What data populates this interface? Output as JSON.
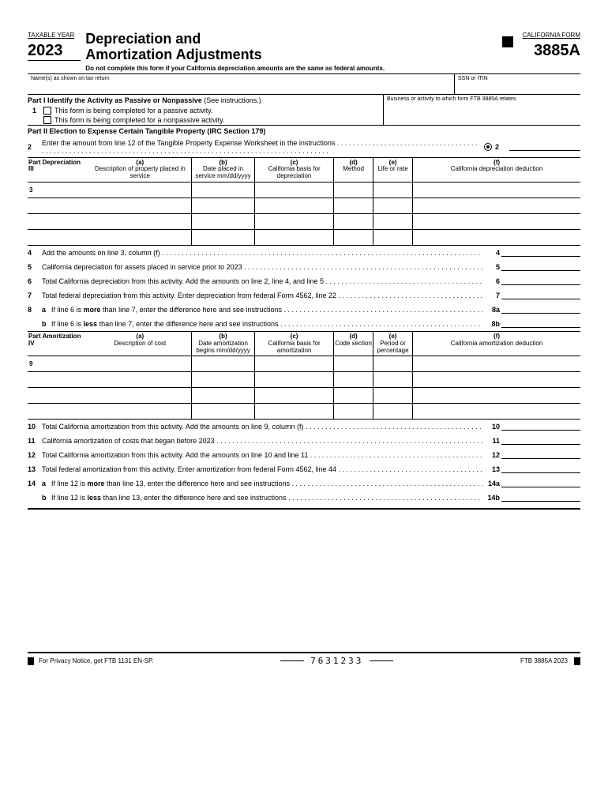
{
  "header": {
    "taxable_year_label": "TAXABLE YEAR",
    "year": "2023",
    "title_line1": "Depreciation and",
    "title_line2": "Amortization Adjustments",
    "note": "Do not complete this form if your California depreciation amounts are the same as federal amounts.",
    "ca_form_label": "CALIFORNIA FORM",
    "form_number": "3885A",
    "names_label": "Name(s) as shown on tax return",
    "ssn_label": "SSN or ITIN"
  },
  "part1": {
    "heading_pt": "Part I",
    "heading_txt": "Identify the Activity as Passive or Nonpassive",
    "heading_sfx": " (See instructions.)",
    "business_label": "Business or activity to which form FTB 3885A relates",
    "line1_num": "1",
    "check_a": "This form is being completed for a passive activity.",
    "check_b": "This form is being completed for a nonpassive activity."
  },
  "part2": {
    "heading_pt": "Part II",
    "heading_txt": "Election to Expense Certain Tangible Property (IRC Section 179)",
    "line2_num": "2",
    "line2_text": "Enter the amount from line 12 of the Tangible Property Expense Worksheet in the instructions",
    "line2_rn": "2"
  },
  "part3": {
    "heading_pt": "Part III",
    "heading_txt": "Depreciation",
    "cols": {
      "a": {
        "h": "(a)",
        "t": "Description of property placed in service"
      },
      "b": {
        "h": "(b)",
        "t": "Date placed in service mm/dd/yyyy"
      },
      "c": {
        "h": "(c)",
        "t": "California basis for depreciation"
      },
      "d": {
        "h": "(d)",
        "t": "Method"
      },
      "e": {
        "h": "(e)",
        "t": "Life or rate"
      },
      "f": {
        "h": "(f)",
        "t": "California depreciation deduction"
      }
    },
    "row3_num": "3",
    "lines": [
      {
        "n": "4",
        "t": "Add the amounts on line 3, column (f)",
        "rn": "4"
      },
      {
        "n": "5",
        "t": "California depreciation for assets placed in service prior to 2023",
        "rn": "5"
      },
      {
        "n": "6",
        "t": "Total California depreciation from this activity. Add the amounts on line 2, line 4, and line 5",
        "rn": "6"
      },
      {
        "n": "7",
        "t": "Total federal depreciation from this activity. Enter depreciation from federal Form 4562, line 22",
        "rn": "7"
      }
    ],
    "line8_num": "8",
    "line8a": {
      "s": "a",
      "t": "If line 6 is <b>more</b> than line 7, enter the difference here and see instructions",
      "rn": "8a"
    },
    "line8b": {
      "s": "b",
      "t": "If line 6 is <b>less</b> than line 7, enter the difference here and see instructions",
      "rn": "8b"
    }
  },
  "part4": {
    "heading_pt": "Part IV",
    "heading_txt": "Amortization",
    "cols": {
      "a": {
        "h": "(a)",
        "t": "Description of cost"
      },
      "b": {
        "h": "(b)",
        "t": "Date amortization begins mm/dd/yyyy"
      },
      "c": {
        "h": "(c)",
        "t": "California basis for amortization"
      },
      "d": {
        "h": "(d)",
        "t": "Code section"
      },
      "e": {
        "h": "(e)",
        "t": "Period or percentage"
      },
      "f": {
        "h": "(f)",
        "t": "California amortization deduction"
      }
    },
    "row9_num": "9",
    "lines": [
      {
        "n": "10",
        "t": "Total California amortization from this activity. Add the amounts on line 9, column (f)",
        "rn": "10"
      },
      {
        "n": "11",
        "t": "California amortization of costs that began before 2023",
        "rn": "11"
      },
      {
        "n": "12",
        "t": "Total California amortization from this activity. Add the amounts on line 10 and line 11",
        "rn": "12"
      },
      {
        "n": "13",
        "t": "Total federal amortization from this activity. Enter amortization from federal Form 4562, line 44",
        "rn": "13"
      }
    ],
    "line14_num": "14",
    "line14a": {
      "s": "a",
      "t": "If line 12 is <b>more</b> than line 13, enter the difference here and see instructions",
      "rn": "14a"
    },
    "line14b": {
      "s": "b",
      "t": "If line 12 is <b>less</b> than line 13, enter the difference here and see instructions",
      "rn": "14b"
    }
  },
  "footer": {
    "privacy": "For Privacy Notice, get FTB 1131 EN-SP.",
    "code": "7631233",
    "form_ref": "FTB 3885A 2023"
  }
}
